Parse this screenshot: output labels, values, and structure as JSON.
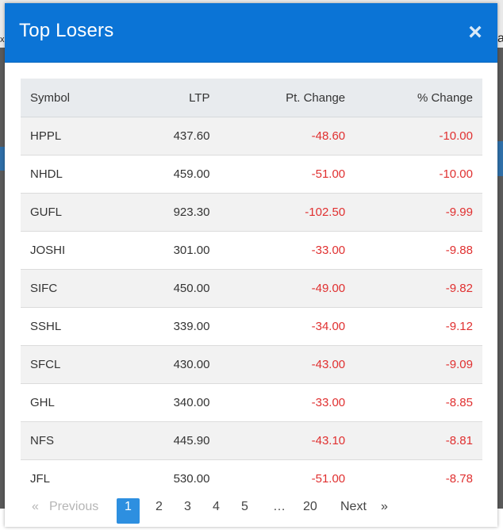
{
  "modal": {
    "title": "Top Losers",
    "close_glyph": "×",
    "header_color": "#0b74d6"
  },
  "table": {
    "headers": [
      "Symbol",
      "LTP",
      "Pt. Change",
      "% Change"
    ],
    "rows": [
      [
        "HPPL",
        "437.60",
        "-48.60",
        "-10.00"
      ],
      [
        "NHDL",
        "459.00",
        "-51.00",
        "-10.00"
      ],
      [
        "GUFL",
        "923.30",
        "-102.50",
        "-9.99"
      ],
      [
        "JOSHI",
        "301.00",
        "-33.00",
        "-9.88"
      ],
      [
        "SIFC",
        "450.00",
        "-49.00",
        "-9.82"
      ],
      [
        "SSHL",
        "339.00",
        "-34.00",
        "-9.12"
      ],
      [
        "SFCL",
        "430.00",
        "-43.00",
        "-9.09"
      ],
      [
        "GHL",
        "340.00",
        "-33.00",
        "-8.85"
      ],
      [
        "NFS",
        "445.90",
        "-43.10",
        "-8.81"
      ],
      [
        "JFL",
        "530.00",
        "-51.00",
        "-8.78"
      ]
    ],
    "negative_color": "#e03030"
  },
  "pagination": {
    "prev_label": "Previous",
    "pages": [
      "1",
      "2",
      "3",
      "4",
      "5",
      "…",
      "20"
    ],
    "active_page": "1",
    "next_label": "Next",
    "next_glyph": "»",
    "prev_glyph": "«"
  },
  "backdrop": {
    "fragment_left": "x.",
    "fragment_right": "a"
  }
}
